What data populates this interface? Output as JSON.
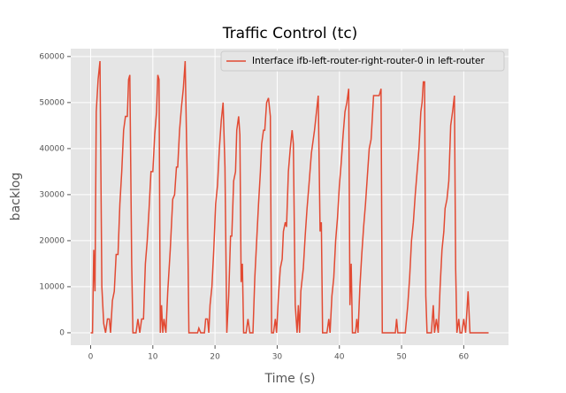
{
  "chart_data": {
    "type": "line",
    "title": "Traffic Control (tc)",
    "x_label": "Time (s)",
    "y_label": "backlog",
    "x": [
      0,
      0.3,
      0.5,
      0.7,
      0.9,
      1.2,
      1.5,
      1.8,
      2.1,
      2.4,
      2.7,
      3.0,
      3.2,
      3.5,
      3.8,
      4.1,
      4.4,
      4.7,
      5.0,
      5.3,
      5.6,
      5.9,
      6.1,
      6.3,
      6.6,
      6.8,
      7.3,
      7.6,
      7.9,
      8.2,
      8.5,
      8.8,
      9.1,
      9.4,
      9.7,
      10.0,
      10.3,
      10.6,
      10.8,
      11.0,
      11.2,
      11.4,
      11.6,
      11.8,
      12.1,
      12.4,
      12.8,
      13.2,
      13.5,
      13.8,
      14.0,
      14.3,
      14.6,
      14.9,
      15.2,
      15.5,
      15.8,
      17.2,
      17.4,
      17.7,
      18.3,
      18.5,
      18.8,
      19.0,
      19.2,
      19.5,
      19.8,
      20.1,
      20.4,
      20.7,
      21.0,
      21.3,
      21.6,
      21.9,
      22.2,
      22.5,
      22.7,
      23.0,
      23.3,
      23.5,
      23.8,
      24.0,
      24.2,
      24.4,
      24.6,
      25.0,
      25.3,
      25.6,
      26.1,
      26.4,
      26.7,
      27.0,
      27.3,
      27.5,
      27.8,
      28.0,
      28.3,
      28.6,
      28.9,
      29.1,
      29.4,
      29.7,
      29.9,
      30.2,
      30.5,
      30.8,
      31.0,
      31.3,
      31.5,
      31.8,
      32.1,
      32.4,
      32.6,
      32.9,
      33.2,
      33.4,
      33.6,
      33.8,
      34.2,
      34.5,
      34.8,
      35.1,
      35.5,
      36.0,
      36.6,
      36.9,
      37.1,
      37.3,
      38.0,
      38.3,
      38.5,
      38.8,
      39.1,
      39.4,
      39.7,
      40.0,
      40.3,
      40.6,
      40.9,
      41.2,
      41.5,
      41.7,
      41.9,
      42.1,
      42.6,
      42.8,
      43.0,
      43.3,
      43.6,
      43.9,
      44.2,
      44.5,
      44.8,
      45.1,
      45.5,
      45.9,
      46.4,
      46.7,
      46.9,
      49.0,
      49.2,
      49.4,
      50.6,
      51.0,
      51.3,
      51.6,
      51.9,
      52.2,
      52.5,
      52.8,
      53.1,
      53.3,
      53.5,
      53.7,
      53.9,
      54.1,
      54.8,
      55.1,
      55.3,
      55.6,
      55.9,
      56.2,
      56.5,
      56.8,
      57.0,
      57.3,
      57.6,
      57.9,
      58.2,
      58.5,
      58.7,
      58.9,
      59.2,
      59.4,
      59.7,
      60.0,
      60.3,
      60.7,
      61.0,
      64.0
    ],
    "series": [
      {
        "name": "Interface ifb-left-router-right-router-0 in left-router",
        "color": "#e24a33",
        "values": [
          0,
          0,
          18000,
          9000,
          48000,
          55000,
          59000,
          10000,
          2000,
          0,
          3000,
          3000,
          0,
          7000,
          9000,
          17000,
          17000,
          28000,
          35000,
          44000,
          47000,
          47000,
          55000,
          56000,
          15000,
          0,
          0,
          3000,
          0,
          3000,
          3000,
          15000,
          20000,
          27000,
          35000,
          35000,
          43000,
          48000,
          56000,
          55000,
          0,
          6000,
          0,
          3000,
          0,
          9000,
          18000,
          29000,
          30000,
          36000,
          36000,
          44000,
          49000,
          53000,
          59000,
          36000,
          0,
          0,
          1000,
          0,
          0,
          3000,
          3000,
          0,
          6000,
          10000,
          18000,
          28000,
          32000,
          40000,
          46000,
          50000,
          36000,
          0,
          8000,
          21000,
          21000,
          33000,
          35000,
          44000,
          47000,
          43000,
          11000,
          15000,
          0,
          0,
          3000,
          0,
          0,
          12000,
          20000,
          28000,
          35000,
          41000,
          44000,
          44000,
          50000,
          51000,
          47000,
          0,
          0,
          3000,
          0,
          8000,
          14000,
          16000,
          22000,
          24000,
          23000,
          35000,
          40000,
          44000,
          41000,
          6000,
          0,
          6000,
          0,
          9000,
          14000,
          21000,
          27000,
          32000,
          39000,
          44000,
          51500,
          22000,
          24000,
          0,
          0,
          3000,
          0,
          8000,
          12000,
          20000,
          25000,
          32000,
          37000,
          43000,
          48000,
          50000,
          53000,
          6000,
          15000,
          0,
          0,
          3000,
          0,
          10000,
          17000,
          23000,
          28000,
          34000,
          40000,
          42000,
          51500,
          51500,
          51500,
          53000,
          0,
          0,
          3000,
          0,
          0,
          6000,
          12000,
          20000,
          24000,
          30000,
          35000,
          40000,
          48000,
          50000,
          54500,
          54500,
          8000,
          0,
          0,
          6000,
          0,
          3000,
          0,
          10000,
          18000,
          22000,
          27000,
          29000,
          33000,
          45000,
          48000,
          51500,
          14000,
          0,
          3000,
          0,
          0,
          3000,
          0,
          9000,
          0,
          0
        ]
      }
    ],
    "xlim": [
      -3.2,
      67.2
    ],
    "ylim": [
      -2700,
      61700
    ],
    "xticks": [
      0,
      10,
      20,
      30,
      40,
      50,
      60
    ],
    "yticks": [
      0,
      10000,
      20000,
      30000,
      40000,
      50000,
      60000
    ],
    "grid": true,
    "legend": "upper right"
  }
}
